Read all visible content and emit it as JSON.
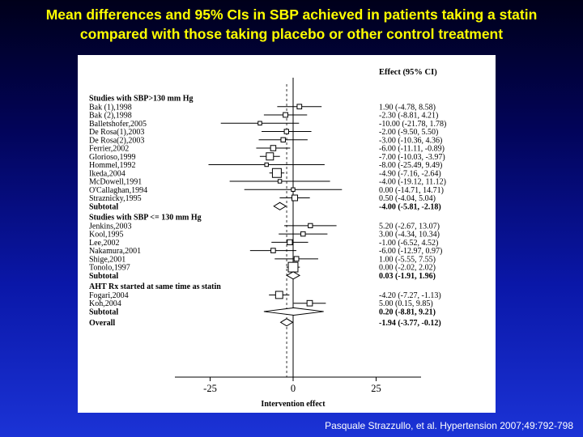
{
  "title": {
    "line1": "Mean differences and 95% CIs in SBP achieved in patients taking a statin",
    "line2": "compared with those taking placebo or other control treatment"
  },
  "citation": "Pasquale Strazzullo, et al. Hypertension 2007;49:792-798",
  "colors": {
    "title": "#ffff00",
    "background_top": "#00001a",
    "background_bottom": "#1b33d6",
    "panel": "#ffffff",
    "ink": "#000000"
  },
  "chart_data": {
    "type": "forest",
    "effect_header": "Effect (95% CI)",
    "xlabel": "Intervention effect",
    "xlim": [
      -40,
      40
    ],
    "xticks": [
      -25,
      0,
      25
    ],
    "xtick_labels": [
      "-25",
      "0",
      "25"
    ],
    "groups": [
      {
        "header": "Studies with SBP>130 mm Hg",
        "studies": [
          {
            "name": "Bak (1),1998",
            "est": 1.9,
            "lo": -4.78,
            "hi": 8.58,
            "ci_text": "1.90 (-4.78, 8.58)"
          },
          {
            "name": "Bak (2),1998",
            "est": -2.3,
            "lo": -8.81,
            "hi": 4.21,
            "ci_text": "-2.30 (-8.81, 4.21)"
          },
          {
            "name": "Balletshofer,2005",
            "est": -10.0,
            "lo": -21.78,
            "hi": 1.78,
            "ci_text": "-10.00 (-21.78, 1.78)"
          },
          {
            "name": "De Rosa(1),2003",
            "est": -2.0,
            "lo": -9.5,
            "hi": 5.5,
            "ci_text": "-2.00 (-9.50, 5.50)"
          },
          {
            "name": "De Rosa(2),2003",
            "est": -3.0,
            "lo": -10.36,
            "hi": 4.36,
            "ci_text": "-3.00 (-10.36, 4.36)"
          },
          {
            "name": "Ferrier,2002",
            "est": -6.0,
            "lo": -11.11,
            "hi": -0.89,
            "ci_text": "-6.00 (-11.11, -0.89)"
          },
          {
            "name": "Glorioso,1999",
            "est": -7.0,
            "lo": -10.03,
            "hi": -3.97,
            "ci_text": "-7.00 (-10.03, -3.97)"
          },
          {
            "name": "Hommel,1992",
            "est": -8.0,
            "lo": -25.49,
            "hi": 9.49,
            "ci_text": "-8.00 (-25.49, 9.49)"
          },
          {
            "name": "Ikeda,2004",
            "est": -4.9,
            "lo": -7.16,
            "hi": -2.64,
            "ci_text": "-4.90 (-7.16, -2.64)"
          },
          {
            "name": "McDowell,1991",
            "est": -4.0,
            "lo": -19.12,
            "hi": 11.12,
            "ci_text": "-4.00 (-19.12, 11.12)"
          },
          {
            "name": "O'Callaghan,1994",
            "est": 0.0,
            "lo": -14.71,
            "hi": 14.71,
            "ci_text": "0.00 (-14.71, 14.71)"
          },
          {
            "name": "Straznicky,1995",
            "est": 0.5,
            "lo": -4.04,
            "hi": 5.04,
            "ci_text": "0.50 (-4.04, 5.04)"
          }
        ],
        "subtotal": {
          "label": "Subtotal",
          "est": -4.0,
          "lo": -5.81,
          "hi": -2.18,
          "ci_text": "-4.00 (-5.81, -2.18)"
        }
      },
      {
        "header": "Studies with SBP <= 130 mm Hg",
        "studies": [
          {
            "name": "Jenkins,2003",
            "est": 5.2,
            "lo": -2.67,
            "hi": 13.07,
            "ci_text": "5.20 (-2.67, 13.07)"
          },
          {
            "name": "Kool,1995",
            "est": 3.0,
            "lo": -4.34,
            "hi": 10.34,
            "ci_text": "3.00 (-4.34, 10.34)"
          },
          {
            "name": "Lee,2002",
            "est": -1.0,
            "lo": -6.52,
            "hi": 4.52,
            "ci_text": "-1.00 (-6.52, 4.52)"
          },
          {
            "name": "Nakamura,2001",
            "est": -6.0,
            "lo": -12.97,
            "hi": 0.97,
            "ci_text": "-6.00 (-12.97, 0.97)"
          },
          {
            "name": "Shige,2001",
            "est": 1.0,
            "lo": -5.55,
            "hi": 7.55,
            "ci_text": "1.00 (-5.55, 7.55)"
          },
          {
            "name": "Tonolo,1997",
            "est": 0.0,
            "lo": -2.02,
            "hi": 2.02,
            "ci_text": "0.00 (-2.02, 2.02)"
          }
        ],
        "subtotal": {
          "label": "Subtotal",
          "est": 0.03,
          "lo": -1.91,
          "hi": 1.96,
          "ci_text": "0.03 (-1.91, 1.96)"
        }
      },
      {
        "header": "AHT Rx started at same time as statin",
        "studies": [
          {
            "name": "Fogari,2004",
            "est": -4.2,
            "lo": -7.27,
            "hi": -1.13,
            "ci_text": "-4.20 (-7.27, -1.13)"
          },
          {
            "name": "Koh,2004",
            "est": 5.0,
            "lo": 0.15,
            "hi": 9.85,
            "ci_text": "5.00 (0.15, 9.85)"
          }
        ],
        "subtotal": {
          "label": "Subtotal",
          "est": 0.2,
          "lo": -8.81,
          "hi": 9.21,
          "ci_text": "0.20 (-8.81, 9.21)"
        }
      }
    ],
    "overall": {
      "label": "Overall",
      "est": -1.94,
      "lo": -3.77,
      "hi": -0.12,
      "ci_text": "-1.94 (-3.77, -0.12)"
    }
  }
}
